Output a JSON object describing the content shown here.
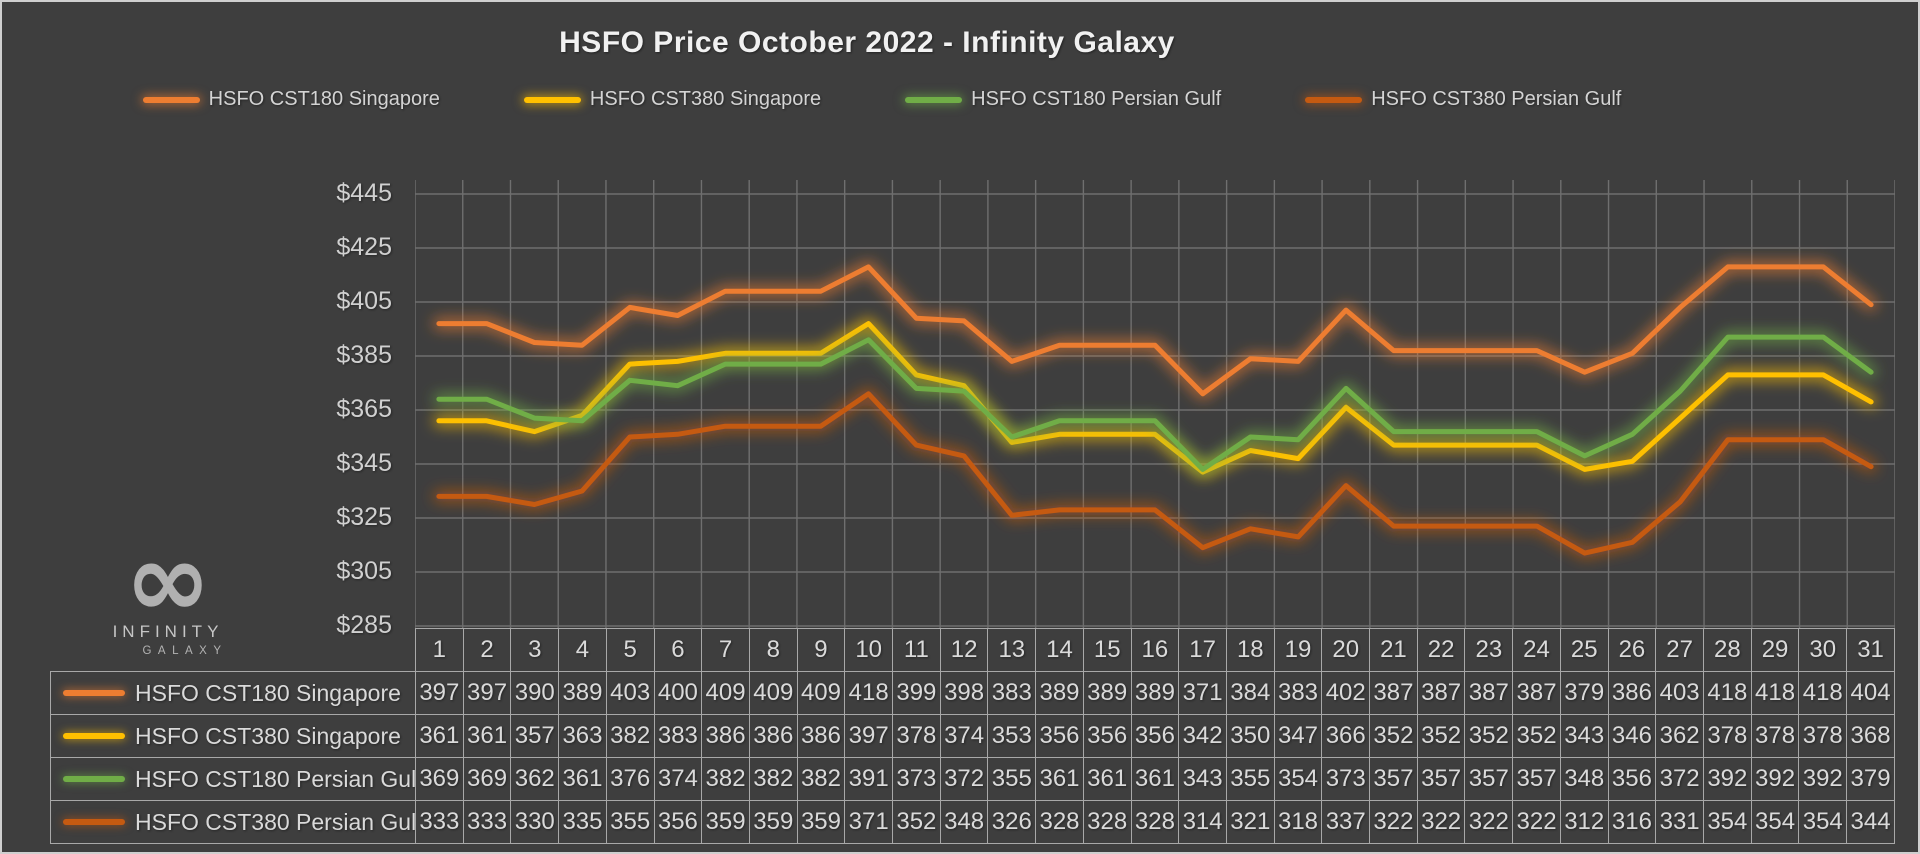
{
  "title": "HSFO Price October 2022 - Infinity Galaxy",
  "logo": {
    "symbol": "∞",
    "line1": "INFINITY",
    "line2": "GALAXY"
  },
  "chart_data": {
    "type": "line",
    "title": "HSFO Price October 2022 - Infinity Galaxy",
    "categories": [
      "1",
      "2",
      "3",
      "4",
      "5",
      "6",
      "7",
      "8",
      "9",
      "10",
      "11",
      "12",
      "13",
      "14",
      "15",
      "16",
      "17",
      "18",
      "19",
      "20",
      "21",
      "22",
      "23",
      "24",
      "25",
      "26",
      "27",
      "28",
      "29",
      "30",
      "31"
    ],
    "series": [
      {
        "name": "HSFO CST180 Singapore",
        "color": "#ED7D31",
        "values": [
          397,
          397,
          390,
          389,
          403,
          400,
          409,
          409,
          409,
          418,
          399,
          398,
          383,
          389,
          389,
          389,
          371,
          384,
          383,
          402,
          387,
          387,
          387,
          387,
          379,
          386,
          403,
          418,
          418,
          418,
          404
        ]
      },
      {
        "name": "HSFO CST380 Singapore",
        "color": "#FFC000",
        "values": [
          361,
          361,
          357,
          363,
          382,
          383,
          386,
          386,
          386,
          397,
          378,
          374,
          353,
          356,
          356,
          356,
          342,
          350,
          347,
          366,
          352,
          352,
          352,
          352,
          343,
          346,
          362,
          378,
          378,
          378,
          368
        ]
      },
      {
        "name": "HSFO CST180 Persian Gulf",
        "color": "#70AD47",
        "values": [
          369,
          369,
          362,
          361,
          376,
          374,
          382,
          382,
          382,
          391,
          373,
          372,
          355,
          361,
          361,
          361,
          343,
          355,
          354,
          373,
          357,
          357,
          357,
          357,
          348,
          356,
          372,
          392,
          392,
          392,
          379
        ]
      },
      {
        "name": "HSFO CST380 Persian Gulf",
        "color": "#C55A11",
        "values": [
          333,
          333,
          330,
          335,
          355,
          356,
          359,
          359,
          359,
          371,
          352,
          348,
          326,
          328,
          328,
          328,
          314,
          321,
          318,
          337,
          322,
          322,
          322,
          322,
          312,
          316,
          331,
          354,
          354,
          354,
          344
        ]
      }
    ],
    "y_axis": {
      "min": 285,
      "max": 445,
      "step": 20,
      "tick_prefix": "$",
      "tick_labels": [
        "$285",
        "$305",
        "$325",
        "$345",
        "$365",
        "$385",
        "$405",
        "$425",
        "$445"
      ]
    },
    "x_axis_unit": "day of month",
    "ylim": [
      285,
      450
    ],
    "grid": true,
    "legend_position": "top",
    "data_table_shown": true,
    "background_color": "#3E3E3E"
  }
}
